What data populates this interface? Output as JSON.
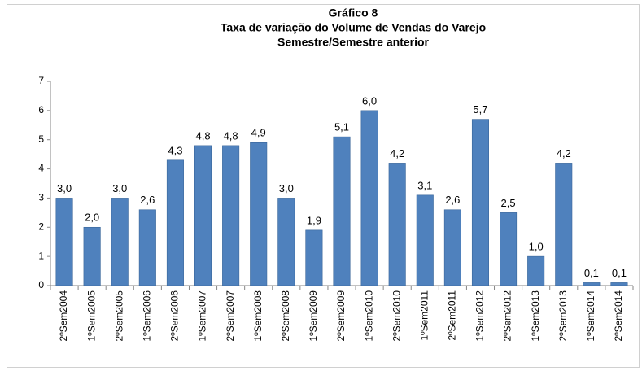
{
  "chart_data": {
    "type": "bar",
    "title": "Gráfico 8",
    "subtitle": [
      "Taxa de variação do Volume de Vendas do Varejo",
      "Semestre/Semestre anterior"
    ],
    "categories": [
      "2ºSem2004",
      "1ºSem2005",
      "2ºSem2005",
      "1ºSem2006",
      "2ºSem2006",
      "1ºSem2007",
      "2ºSem2007",
      "1ºSem2008",
      "2ºSem2008",
      "1ºSem2009",
      "2ºSem2009",
      "1ºSem2010",
      "2ºSem2010",
      "1ºSem2011",
      "2ºSem2011",
      "1ºSem2012",
      "2ºSem2012",
      "1ºSem2013",
      "2ºSem2013",
      "1ºSem2014",
      "2ºSem2014"
    ],
    "values": [
      3.0,
      2.0,
      3.0,
      2.6,
      4.3,
      4.8,
      4.8,
      4.9,
      3.0,
      1.9,
      5.1,
      6.0,
      4.2,
      3.1,
      2.6,
      5.7,
      2.5,
      1.0,
      4.2,
      0.1,
      0.1
    ],
    "value_labels": [
      "3,0",
      "2,0",
      "3,0",
      "2,6",
      "4,3",
      "4,8",
      "4,8",
      "4,9",
      "3,0",
      "1,9",
      "5,1",
      "6,0",
      "4,2",
      "3,1",
      "2,6",
      "5,7",
      "2,5",
      "1,0",
      "4,2",
      "0,1",
      "0,1"
    ],
    "color": "#4f81bd",
    "ylim": [
      0,
      7
    ],
    "yticks": [
      0,
      1,
      2,
      3,
      4,
      5,
      6,
      7
    ],
    "grid": false
  }
}
